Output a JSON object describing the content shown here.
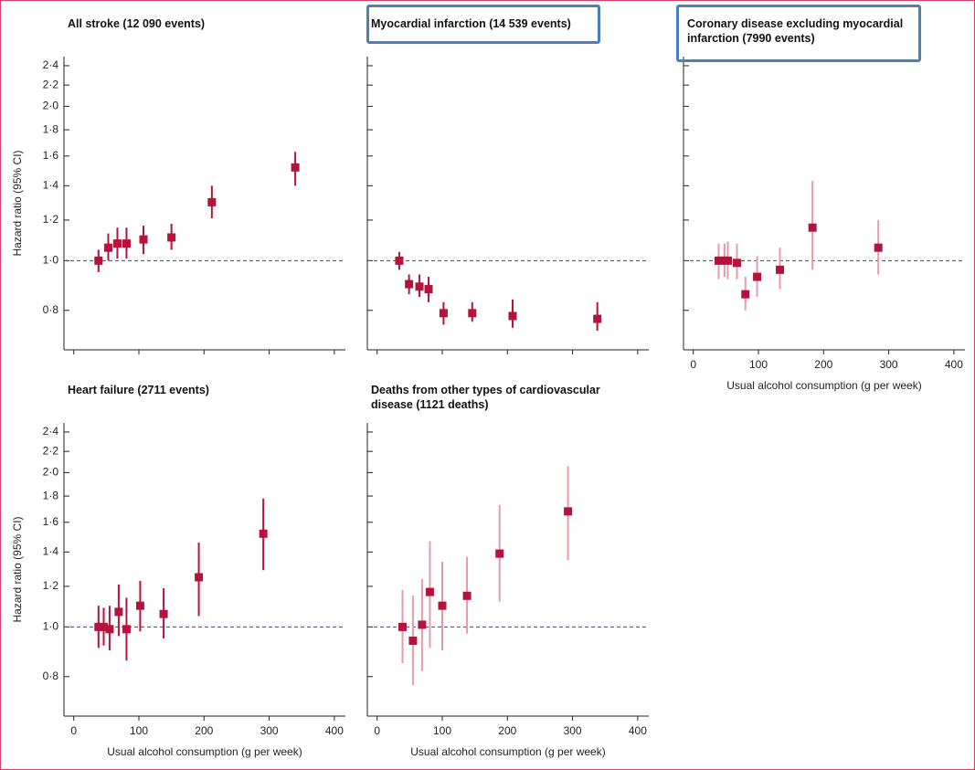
{
  "chart_data": [
    {
      "type": "scatter",
      "title": "All stroke (12 090 events)",
      "ylabel": "Hazard ratio (95% CI)",
      "x": [
        38,
        53,
        67,
        81,
        107,
        150,
        212,
        340
      ],
      "values": [
        1.0,
        1.06,
        1.08,
        1.08,
        1.1,
        1.11,
        1.3,
        1.52
      ],
      "lower": [
        0.95,
        1.0,
        1.01,
        1.01,
        1.03,
        1.05,
        1.21,
        1.4
      ],
      "upper": [
        1.05,
        1.13,
        1.16,
        1.16,
        1.17,
        1.18,
        1.4,
        1.63
      ],
      "color": "#b5123e",
      "ci_color": "#b5123e",
      "reference_line": 1,
      "log_y": true,
      "xlim": [
        -15,
        417
      ],
      "xticks": [
        0,
        100,
        200,
        300,
        400
      ],
      "xtick_labels": false,
      "ylim": [
        0.67,
        2.5
      ],
      "ytick_labels": true,
      "yticks": [
        {
          "value": 0.8,
          "label": "0·8"
        },
        {
          "value": 1.0,
          "label": "1·0"
        },
        {
          "value": 1.2,
          "label": "1·2"
        },
        {
          "value": 1.4,
          "label": "1·4"
        },
        {
          "value": 1.6,
          "label": "1·6"
        },
        {
          "value": 1.8,
          "label": "1·8"
        },
        {
          "value": 2.0,
          "label": "2·0"
        },
        {
          "value": 2.2,
          "label": "2·2"
        },
        {
          "value": 2.4,
          "label": "2·4"
        }
      ]
    },
    {
      "type": "scatter",
      "title": "Myocardial infarction (14 539 events)",
      "x": [
        34,
        49,
        65,
        79,
        102,
        146,
        208,
        338
      ],
      "values": [
        1.0,
        0.9,
        0.89,
        0.88,
        0.79,
        0.79,
        0.78,
        0.77
      ],
      "lower": [
        0.96,
        0.86,
        0.85,
        0.83,
        0.75,
        0.76,
        0.74,
        0.73
      ],
      "upper": [
        1.04,
        0.94,
        0.94,
        0.93,
        0.83,
        0.83,
        0.84,
        0.83
      ],
      "color": "#b5123e",
      "ci_color": "#b5123e",
      "reference_line": 1,
      "log_y": true,
      "xlim": [
        -15,
        417
      ],
      "xticks": [
        0,
        100,
        200,
        300,
        400
      ],
      "xtick_labels": false,
      "ylim": [
        0.67,
        2.5
      ],
      "ytick_labels": false,
      "yticks": [
        0.8,
        1.0,
        1.2,
        1.4,
        1.6,
        1.8,
        2.0,
        2.2,
        2.4
      ]
    },
    {
      "type": "scatter",
      "title": "Coronary disease excluding myocardial infarction (7990 events)",
      "xlabel": "Usual alcohol consumption (g per week)",
      "x": [
        39,
        48,
        53,
        67,
        80,
        98,
        133,
        183,
        284
      ],
      "values": [
        1.0,
        1.0,
        1.0,
        0.99,
        0.86,
        0.93,
        0.96,
        1.16,
        1.06
      ],
      "lower": [
        0.92,
        0.93,
        0.92,
        0.92,
        0.8,
        0.85,
        0.88,
        0.96,
        0.94
      ],
      "upper": [
        1.08,
        1.08,
        1.09,
        1.08,
        0.93,
        1.02,
        1.06,
        1.43,
        1.2
      ],
      "color": "#b5123e",
      "ci_color": "#e89aaa",
      "reference_line": 1,
      "log_y": true,
      "xlim": [
        -15,
        417
      ],
      "xticks": [
        0,
        100,
        200,
        300,
        400
      ],
      "xtick_labels": true,
      "ylim": [
        0.67,
        2.5
      ],
      "ytick_labels": false,
      "yticks": [
        0.8,
        1.0,
        1.2,
        1.4,
        1.6,
        1.8,
        2.0,
        2.2,
        2.4
      ]
    },
    {
      "type": "scatter",
      "title": "Heart failure (2711 events)",
      "ylabel": "Hazard ratio (95% CI)",
      "xlabel": "Usual alcohol consumption (g per week)",
      "x": [
        38,
        46,
        55,
        69,
        81,
        102,
        138,
        192,
        291
      ],
      "values": [
        1.0,
        1.0,
        0.99,
        1.07,
        0.99,
        1.1,
        1.06,
        1.25,
        1.52
      ],
      "lower": [
        0.91,
        0.92,
        0.9,
        0.96,
        0.86,
        0.98,
        0.95,
        1.05,
        1.29
      ],
      "upper": [
        1.1,
        1.09,
        1.1,
        1.21,
        1.14,
        1.23,
        1.19,
        1.46,
        1.78
      ],
      "color": "#b5123e",
      "ci_color": "#b5123e",
      "reference_line": 1,
      "log_y": true,
      "xlim": [
        -15,
        417
      ],
      "xticks": [
        0,
        100,
        200,
        300,
        400
      ],
      "xtick_labels": true,
      "ylim": [
        0.67,
        2.5
      ],
      "ytick_labels": true,
      "yticks": [
        {
          "value": 0.8,
          "label": "0·8"
        },
        {
          "value": 1.0,
          "label": "1·0"
        },
        {
          "value": 1.2,
          "label": "1·2"
        },
        {
          "value": 1.4,
          "label": "1·4"
        },
        {
          "value": 1.6,
          "label": "1·6"
        },
        {
          "value": 1.8,
          "label": "1·8"
        },
        {
          "value": 2.0,
          "label": "2·0"
        },
        {
          "value": 2.2,
          "label": "2·2"
        },
        {
          "value": 2.4,
          "label": "2·4"
        }
      ]
    },
    {
      "type": "scatter",
      "title": "Deaths from other types of cardiovascular disease (1121 deaths)",
      "xlabel": "Usual alcohol consumption (g per week)",
      "x": [
        39,
        55,
        69,
        81,
        100,
        138,
        188,
        293
      ],
      "values": [
        1.0,
        0.94,
        1.01,
        1.17,
        1.1,
        1.15,
        1.39,
        1.68
      ],
      "lower": [
        0.85,
        0.77,
        0.82,
        0.91,
        0.9,
        0.97,
        1.12,
        1.35
      ],
      "upper": [
        1.18,
        1.15,
        1.24,
        1.47,
        1.34,
        1.37,
        1.73,
        2.06
      ],
      "color": "#b5123e",
      "ci_color": "#e89aaa",
      "reference_line": 1,
      "log_y": true,
      "xlim": [
        -15,
        417
      ],
      "xticks": [
        0,
        100,
        200,
        300,
        400
      ],
      "xtick_labels": true,
      "ylim": [
        0.67,
        2.5
      ],
      "ytick_labels": false,
      "yticks": [
        0.8,
        1.0,
        1.2,
        1.4,
        1.6,
        1.8,
        2.0,
        2.2,
        2.4
      ]
    }
  ]
}
